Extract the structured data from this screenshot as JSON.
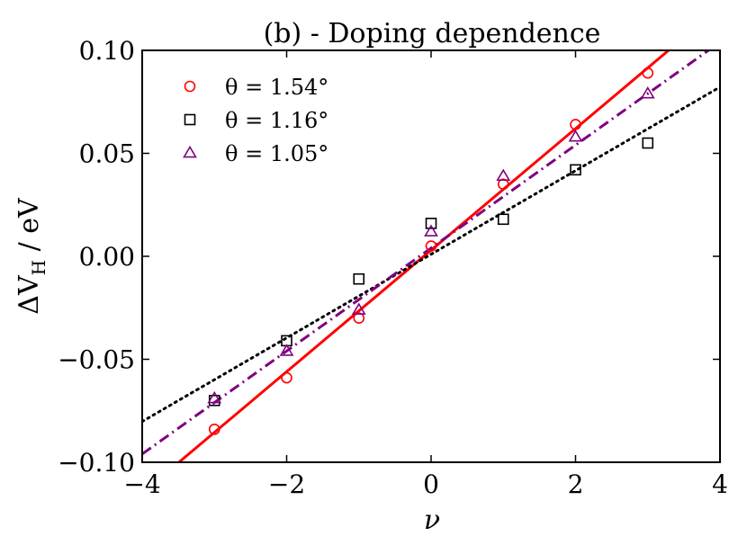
{
  "chart_data": {
    "type": "scatter",
    "title": "(b) - Doping dependence",
    "xlabel": "ν",
    "ylabel": "ΔV_H / eV",
    "ylabel_main": "ΔV",
    "ylabel_sub": "H",
    "ylabel_unit": " / eV",
    "xlim": [
      -4,
      4
    ],
    "ylim": [
      -0.1,
      0.1
    ],
    "xticks": [
      -4,
      -2,
      0,
      2,
      4
    ],
    "xtick_labels": [
      "−4",
      "−2",
      "0",
      "2",
      "4"
    ],
    "yticks": [
      -0.1,
      -0.05,
      0.0,
      0.05,
      0.1
    ],
    "ytick_labels": [
      "−0.10",
      "−0.05",
      "0.00",
      "0.05",
      "0.10"
    ],
    "grid": false,
    "legend_position": "top-left",
    "series": [
      {
        "name": "θ = 1.54°",
        "marker": "circle",
        "color": "#ff0000",
        "x": [
          -3,
          -2,
          -1,
          0,
          1,
          2,
          3
        ],
        "y": [
          -0.084,
          -0.059,
          -0.03,
          0.005,
          0.035,
          0.064,
          0.089
        ],
        "fit": {
          "style": "solid",
          "slope": 0.0295,
          "intercept": 0.003
        }
      },
      {
        "name": "θ = 1.16°",
        "marker": "square",
        "color": "#000000",
        "x": [
          -3,
          -2,
          -1,
          0,
          1,
          2,
          3
        ],
        "y": [
          -0.07,
          -0.041,
          -0.011,
          0.016,
          0.018,
          0.042,
          0.055
        ],
        "fit": {
          "style": "dotted",
          "slope": 0.0203,
          "intercept": 0.001
        }
      },
      {
        "name": "θ = 1.05°",
        "marker": "triangle",
        "color": "#800080",
        "x": [
          -3,
          -2,
          -1,
          0,
          1,
          2,
          3
        ],
        "y": [
          -0.069,
          -0.046,
          -0.026,
          0.012,
          0.039,
          0.058,
          0.079
        ],
        "fit": {
          "style": "dashdot",
          "slope": 0.025,
          "intercept": 0.004
        }
      }
    ]
  }
}
